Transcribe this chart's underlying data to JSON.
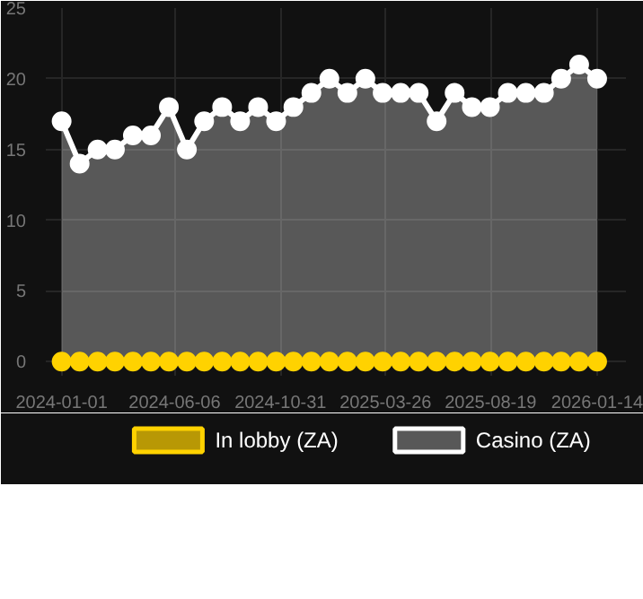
{
  "chart_data": {
    "type": "area",
    "x": [
      "2024-01-01",
      "2024-01-26",
      "2024-02-20",
      "2024-03-15",
      "2024-04-09",
      "2024-05-04",
      "2024-05-29",
      "2024-06-23",
      "2024-07-17",
      "2024-08-11",
      "2024-09-05",
      "2024-09-30",
      "2024-10-25",
      "2024-11-18",
      "2024-12-13",
      "2025-01-07",
      "2025-02-01",
      "2025-02-26",
      "2025-03-22",
      "2025-04-16",
      "2025-05-11",
      "2025-06-05",
      "2025-06-30",
      "2025-07-24",
      "2025-08-18",
      "2025-09-12",
      "2025-10-07",
      "2025-11-01",
      "2025-11-25",
      "2025-12-20",
      "2026-01-14"
    ],
    "series": [
      {
        "name": "In lobby (ZA)",
        "type": "scatter",
        "color": "#ffd200",
        "values": [
          0,
          0,
          0,
          0,
          0,
          0,
          0,
          0,
          0,
          0,
          0,
          0,
          0,
          0,
          0,
          0,
          0,
          0,
          0,
          0,
          0,
          0,
          0,
          0,
          0,
          0,
          0,
          0,
          0,
          0,
          0
        ]
      },
      {
        "name": "Casino (ZA)",
        "color": "#ffffff",
        "values": [
          17,
          14,
          15,
          15,
          16,
          16,
          18,
          15,
          17,
          18,
          17,
          18,
          17,
          18,
          19,
          20,
          19,
          20,
          19,
          19,
          19,
          17,
          19,
          18,
          18,
          19,
          19,
          19,
          20,
          21,
          20
        ]
      }
    ],
    "xlim": [
      "2023-12-10",
      "2026-02-23"
    ],
    "xticks": [
      "2024-01-01",
      "2024-06-06",
      "2024-10-31",
      "2025-03-26",
      "2025-08-19",
      "2026-01-14"
    ],
    "ylim": [
      -1,
      25
    ],
    "yticks": [
      0,
      5,
      10,
      15,
      20,
      25
    ],
    "grid": true,
    "legend": "bottom",
    "marker": "circle",
    "line_style": "solid"
  }
}
